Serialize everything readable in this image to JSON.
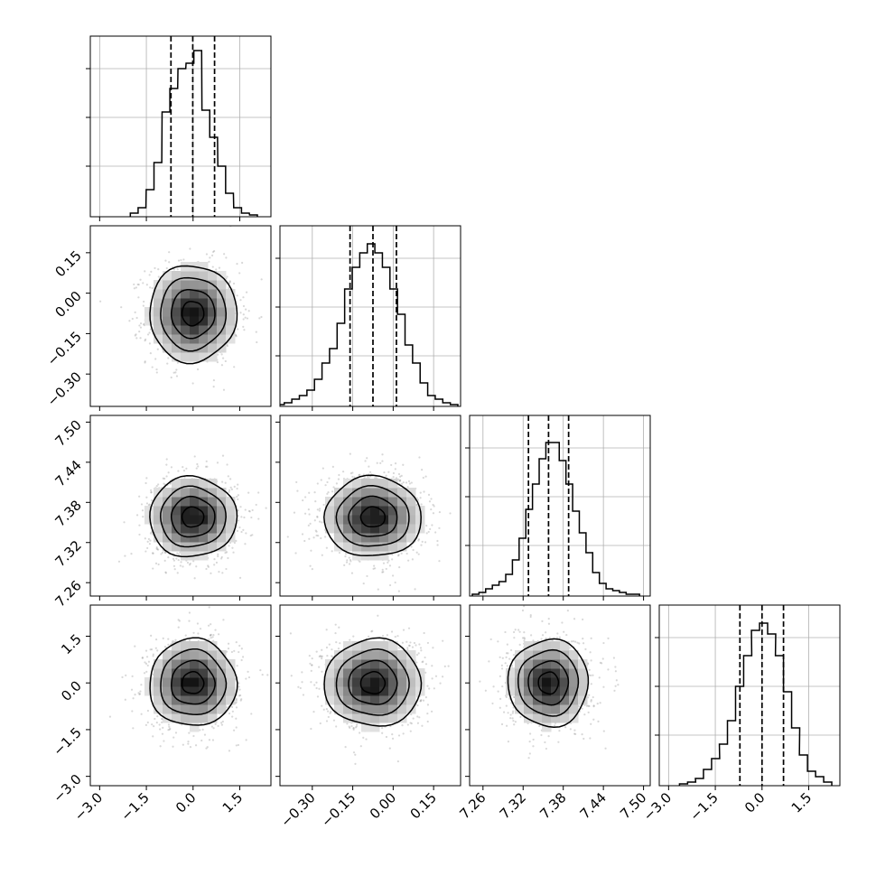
{
  "chart_data": {
    "type": "corner",
    "grid": true,
    "colors": {
      "line": "#000000",
      "grid": "#b0b0b0",
      "scatter": "#7f7f7f"
    },
    "params": [
      {
        "range": [
          -3.3,
          2.5
        ],
        "ticks": [
          -3.0,
          -1.5,
          0.0,
          1.5
        ],
        "tick_labels": [
          "−3.0",
          "−1.5",
          "0.0",
          "1.5"
        ],
        "mean": -0.01,
        "sd": 0.7,
        "quantiles": [
          -0.71,
          -0.01,
          0.69
        ]
      },
      {
        "range": [
          -0.42,
          0.25
        ],
        "ticks": [
          -0.3,
          -0.15,
          0.0,
          0.15
        ],
        "tick_labels": [
          "−0.30",
          "−0.15",
          "0.00",
          "0.15"
        ],
        "mean": -0.075,
        "sd": 0.09,
        "quantiles": [
          -0.16,
          -0.075,
          0.012
        ]
      },
      {
        "range": [
          7.24,
          7.51
        ],
        "ticks": [
          7.26,
          7.32,
          7.38,
          7.44,
          7.5
        ],
        "tick_labels": [
          "7.26",
          "7.32",
          "7.38",
          "7.44",
          "7.50"
        ],
        "mean": 7.358,
        "sd": 0.03,
        "quantiles": [
          7.328,
          7.358,
          7.388
        ]
      },
      {
        "range": [
          -3.3,
          2.5
        ],
        "ticks": [
          -3.0,
          -1.5,
          0.0,
          1.5
        ],
        "tick_labels": [
          "−3.0",
          "−1.5",
          "0.0",
          "1.5"
        ],
        "mean": 0.0,
        "sd": 0.7,
        "quantiles": [
          -0.71,
          0.0,
          0.69
        ]
      }
    ],
    "histograms": [
      {
        "bin_centers": [
          -1.89,
          -1.64,
          -1.38,
          -1.13,
          -0.87,
          -0.62,
          -0.36,
          -0.1,
          0.15,
          0.41,
          0.66,
          0.92,
          1.17,
          1.43,
          1.68,
          1.94
        ],
        "counts": [
          0.02,
          0.05,
          0.15,
          0.3,
          0.58,
          0.71,
          0.82,
          0.85,
          0.92,
          0.59,
          0.44,
          0.28,
          0.13,
          0.05,
          0.02,
          0.01
        ]
      },
      {
        "bin_centers": [
          -0.418,
          -0.39,
          -0.362,
          -0.334,
          -0.306,
          -0.278,
          -0.25,
          -0.222,
          -0.194,
          -0.166,
          -0.138,
          -0.11,
          -0.082,
          -0.054,
          -0.026,
          0.002,
          0.03,
          0.058,
          0.086,
          0.114,
          0.142,
          0.17,
          0.198,
          0.226
        ],
        "counts": [
          0.01,
          0.02,
          0.04,
          0.06,
          0.09,
          0.15,
          0.24,
          0.32,
          0.46,
          0.65,
          0.77,
          0.85,
          0.9,
          0.85,
          0.77,
          0.65,
          0.51,
          0.34,
          0.24,
          0.13,
          0.06,
          0.04,
          0.02,
          0.01
        ]
      },
      {
        "bin_centers": [
          7.249,
          7.259,
          7.269,
          7.279,
          7.289,
          7.299,
          7.309,
          7.319,
          7.329,
          7.339,
          7.349,
          7.359,
          7.369,
          7.379,
          7.389,
          7.399,
          7.409,
          7.419,
          7.429,
          7.439,
          7.449,
          7.459,
          7.469,
          7.479,
          7.489
        ],
        "counts": [
          0.01,
          0.02,
          0.04,
          0.06,
          0.08,
          0.12,
          0.2,
          0.32,
          0.48,
          0.62,
          0.76,
          0.85,
          0.85,
          0.75,
          0.62,
          0.47,
          0.35,
          0.24,
          0.13,
          0.07,
          0.04,
          0.03,
          0.02,
          0.01,
          0.01
        ]
      },
      {
        "bin_centers": [
          -2.52,
          -2.26,
          -2.01,
          -1.75,
          -1.49,
          -1.24,
          -0.98,
          -0.72,
          -0.46,
          -0.21,
          0.05,
          0.31,
          0.56,
          0.82,
          1.08,
          1.33,
          1.59,
          1.85,
          2.11
        ],
        "counts": [
          0.01,
          0.02,
          0.04,
          0.09,
          0.15,
          0.23,
          0.36,
          0.55,
          0.72,
          0.86,
          0.9,
          0.84,
          0.72,
          0.52,
          0.32,
          0.17,
          0.08,
          0.05,
          0.02
        ]
      }
    ],
    "correlations": {
      "0-1": 0.02,
      "0-2": 0.0,
      "0-3": 0.0,
      "1-2": 0.0,
      "1-3": 0.0,
      "2-3": 0.0
    },
    "contour_levels_sigma": [
      0.5,
      1.0,
      1.5,
      2.0
    ]
  }
}
